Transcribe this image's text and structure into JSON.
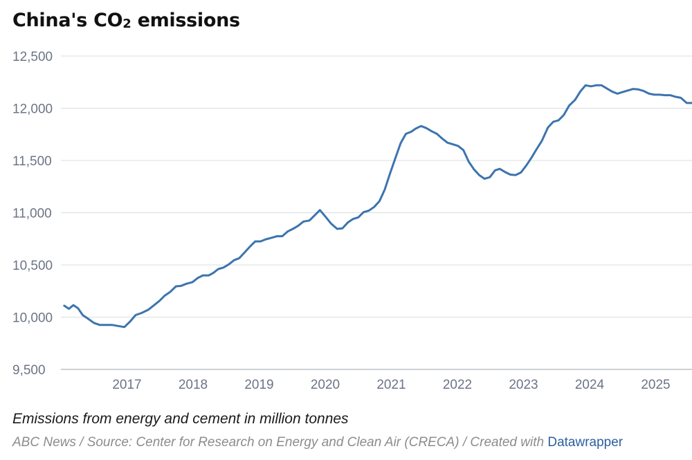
{
  "chart_data": {
    "type": "line",
    "title": "China's CO2 emissions",
    "title_main": "China's CO",
    "title_subscript": "2",
    "title_end": " emissions",
    "description": "Emissions from energy and cement in million tonnes",
    "xlabel": "",
    "ylabel": "",
    "y_ticks": [
      "9,500",
      "10,000",
      "10,500",
      "11,000",
      "11,500",
      "12,000",
      "12,500"
    ],
    "y_tick_values": [
      9500,
      10000,
      10500,
      11000,
      11500,
      12000,
      12500
    ],
    "x_ticks": [
      "2017",
      "2018",
      "2019",
      "2020",
      "2021",
      "2022",
      "2023",
      "2024",
      "2025"
    ],
    "x_tick_values": [
      2017,
      2018,
      2019,
      2020,
      2021,
      2022,
      2023,
      2024,
      2025
    ],
    "ylim": [
      9500,
      12500
    ],
    "xlim": [
      2016.0,
      2025.55
    ],
    "grid": true,
    "line_color": "#3c74ae",
    "series": [
      {
        "name": "CO2 emissions",
        "x": [
          2016.05,
          2016.12,
          2016.19,
          2016.26,
          2016.33,
          2016.4,
          2016.5,
          2016.59,
          2016.68,
          2016.78,
          2016.87,
          2016.96,
          2017.05,
          2017.13,
          2017.22,
          2017.32,
          2017.4,
          2017.49,
          2017.57,
          2017.65,
          2017.74,
          2017.82,
          2017.9,
          2017.99,
          2018.07,
          2018.15,
          2018.24,
          2018.31,
          2018.38,
          2018.46,
          2018.54,
          2018.62,
          2018.7,
          2018.78,
          2018.86,
          2018.94,
          2019.02,
          2019.1,
          2019.19,
          2019.27,
          2019.35,
          2019.43,
          2019.51,
          2019.59,
          2019.67,
          2019.76,
          2019.84,
          2019.92,
          2020.0,
          2020.09,
          2020.18,
          2020.26,
          2020.34,
          2020.42,
          2020.5,
          2020.58,
          2020.66,
          2020.74,
          2020.82,
          2020.9,
          2020.98,
          2021.06,
          2021.14,
          2021.22,
          2021.3,
          2021.37,
          2021.45,
          2021.53,
          2021.61,
          2021.69,
          2021.77,
          2021.85,
          2021.93,
          2022.01,
          2022.09,
          2022.17,
          2022.25,
          2022.33,
          2022.41,
          2022.49,
          2022.57,
          2022.64,
          2022.72,
          2022.8,
          2022.88,
          2022.96,
          2023.04,
          2023.12,
          2023.2,
          2023.28,
          2023.37,
          2023.45,
          2023.53,
          2023.61,
          2023.69,
          2023.78,
          2023.86,
          2023.94,
          2024.02,
          2024.1,
          2024.18,
          2024.26,
          2024.34,
          2024.42,
          2024.5,
          2024.58,
          2024.66,
          2024.74,
          2024.82,
          2024.9,
          2024.98,
          2025.06,
          2025.14,
          2025.22,
          2025.3,
          2025.38,
          2025.47,
          2025.55
        ],
        "values": [
          10110,
          10080,
          10115,
          10085,
          10020,
          9990,
          9945,
          9925,
          9925,
          9925,
          9915,
          9905,
          9960,
          10020,
          10040,
          10070,
          10110,
          10155,
          10205,
          10240,
          10295,
          10300,
          10320,
          10335,
          10375,
          10400,
          10400,
          10425,
          10460,
          10475,
          10505,
          10545,
          10565,
          10620,
          10675,
          10725,
          10725,
          10745,
          10760,
          10775,
          10775,
          10820,
          10845,
          10875,
          10915,
          10925,
          10975,
          11025,
          10965,
          10895,
          10845,
          10850,
          10905,
          10940,
          10955,
          11005,
          11020,
          11055,
          11110,
          11220,
          11375,
          11520,
          11665,
          11755,
          11775,
          11805,
          11830,
          11810,
          11780,
          11755,
          11710,
          11670,
          11655,
          11640,
          11600,
          11490,
          11415,
          11360,
          11325,
          11340,
          11405,
          11420,
          11390,
          11365,
          11360,
          11385,
          11450,
          11525,
          11610,
          11690,
          11815,
          11870,
          11885,
          11935,
          12025,
          12080,
          12160,
          12220,
          12210,
          12220,
          12220,
          12190,
          12160,
          12140,
          12155,
          12170,
          12185,
          12180,
          12165,
          12140,
          12130,
          12130,
          12125,
          12125,
          12110,
          12100,
          12050,
          12050
        ]
      }
    ]
  },
  "footer": {
    "text": "ABC News / Source: Center for Research on Energy and Clean Air (CRECA) / Created with ",
    "brand": "Datawrapper"
  }
}
